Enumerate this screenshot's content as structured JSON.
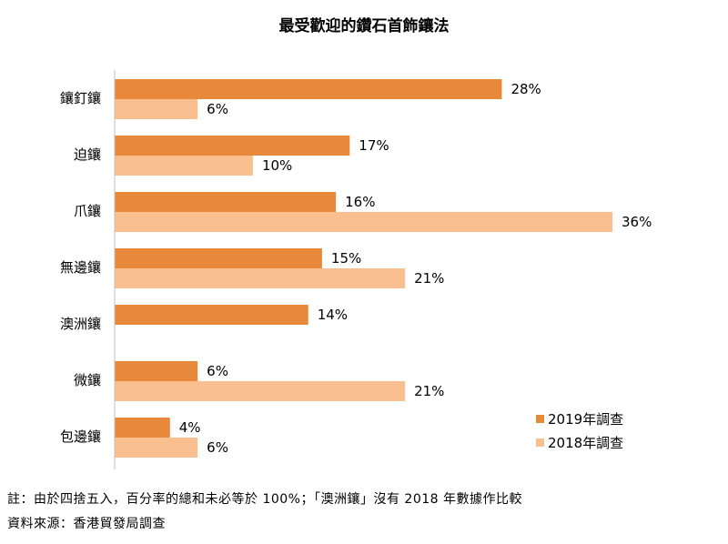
{
  "chart_data": {
    "type": "bar",
    "orientation": "horizontal",
    "title": "最受歡迎的鑽石首飾鑲法",
    "categories": [
      "鑲釘鑲",
      "迫鑲",
      "爪鑲",
      "無邊鑲",
      "澳洲鑲",
      "微鑲",
      "包邊鑲"
    ],
    "series": [
      {
        "name": "2019年調查",
        "color": "#E8883A",
        "values": [
          28,
          17,
          16,
          15,
          14,
          6,
          4
        ]
      },
      {
        "name": "2018年調查",
        "color": "#F9BF8F",
        "values": [
          6,
          10,
          36,
          21,
          null,
          21,
          6
        ]
      }
    ],
    "value_suffix": "%",
    "xlim": [
      0,
      36
    ],
    "grid": false,
    "legend_position": "bottom-right"
  },
  "notes": {
    "note": "註：由於四捨五入，百分率的總和未必等於 100%；「澳洲鑲」沒有 2018 年數據作比較",
    "source": "資料來源：香港貿發局調查"
  }
}
